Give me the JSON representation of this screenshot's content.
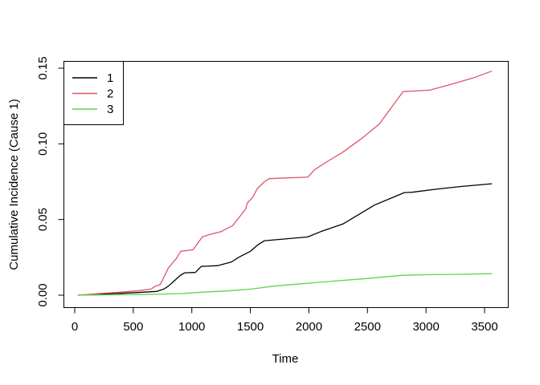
{
  "chart_data": {
    "type": "line",
    "title": "",
    "xlabel": "Time",
    "ylabel": "Cumulative Incidence (Cause 1)",
    "xlim": [
      0,
      3500
    ],
    "ylim": [
      0,
      0.15
    ],
    "grid": false,
    "legend_position": "topleft",
    "x_ticks": [
      0,
      500,
      1000,
      1500,
      2000,
      2500,
      3000,
      3500
    ],
    "x_tick_labels": [
      "0",
      "500",
      "1000",
      "1500",
      "2000",
      "2500",
      "3000",
      "3500"
    ],
    "y_ticks": [
      0,
      0.05,
      0.1,
      0.15
    ],
    "y_tick_labels": [
      "0.00",
      "0.05",
      "0.10",
      "0.15"
    ],
    "series": [
      {
        "name": "1",
        "color": "#000000",
        "points": [
          [
            30,
            0
          ],
          [
            200,
            0.0007
          ],
          [
            400,
            0.0012
          ],
          [
            600,
            0.002
          ],
          [
            700,
            0.0025
          ],
          [
            760,
            0.004
          ],
          [
            800,
            0.006
          ],
          [
            850,
            0.0095
          ],
          [
            900,
            0.013
          ],
          [
            940,
            0.0148
          ],
          [
            1030,
            0.015
          ],
          [
            1080,
            0.019
          ],
          [
            1220,
            0.0195
          ],
          [
            1340,
            0.022
          ],
          [
            1400,
            0.025
          ],
          [
            1500,
            0.029
          ],
          [
            1560,
            0.033
          ],
          [
            1620,
            0.036
          ],
          [
            1700,
            0.0365
          ],
          [
            1990,
            0.0385
          ],
          [
            2100,
            0.042
          ],
          [
            2290,
            0.047
          ],
          [
            2560,
            0.0595
          ],
          [
            2815,
            0.0678
          ],
          [
            2880,
            0.068
          ],
          [
            3100,
            0.0702
          ],
          [
            3300,
            0.0718
          ],
          [
            3560,
            0.0736
          ]
        ]
      },
      {
        "name": "2",
        "color": "#DF536B",
        "points": [
          [
            30,
            0
          ],
          [
            200,
            0.001
          ],
          [
            400,
            0.002
          ],
          [
            550,
            0.003
          ],
          [
            650,
            0.004
          ],
          [
            690,
            0.006
          ],
          [
            730,
            0.007
          ],
          [
            800,
            0.018
          ],
          [
            870,
            0.0245
          ],
          [
            905,
            0.029
          ],
          [
            1010,
            0.03
          ],
          [
            1090,
            0.0385
          ],
          [
            1150,
            0.04
          ],
          [
            1250,
            0.042
          ],
          [
            1350,
            0.046
          ],
          [
            1430,
            0.054
          ],
          [
            1460,
            0.057
          ],
          [
            1475,
            0.061
          ],
          [
            1520,
            0.0647
          ],
          [
            1560,
            0.0705
          ],
          [
            1620,
            0.075
          ],
          [
            1660,
            0.077
          ],
          [
            1990,
            0.078
          ],
          [
            2050,
            0.083
          ],
          [
            2150,
            0.088
          ],
          [
            2290,
            0.0945
          ],
          [
            2450,
            0.1035
          ],
          [
            2600,
            0.113
          ],
          [
            2804,
            0.1345
          ],
          [
            3031,
            0.1355
          ],
          [
            3200,
            0.139
          ],
          [
            3400,
            0.1435
          ],
          [
            3560,
            0.148
          ]
        ]
      },
      {
        "name": "3",
        "color": "#61D04F",
        "points": [
          [
            30,
            0
          ],
          [
            300,
            0.0002
          ],
          [
            600,
            0.0004
          ],
          [
            700,
            0.0006
          ],
          [
            900,
            0.001
          ],
          [
            1100,
            0.002
          ],
          [
            1300,
            0.0028
          ],
          [
            1500,
            0.004
          ],
          [
            1600,
            0.005
          ],
          [
            1700,
            0.006
          ],
          [
            1850,
            0.007
          ],
          [
            1970,
            0.0078
          ],
          [
            2240,
            0.0095
          ],
          [
            2500,
            0.011
          ],
          [
            2790,
            0.0131
          ],
          [
            3000,
            0.0135
          ],
          [
            3300,
            0.0138
          ],
          [
            3560,
            0.0142
          ]
        ]
      }
    ]
  }
}
